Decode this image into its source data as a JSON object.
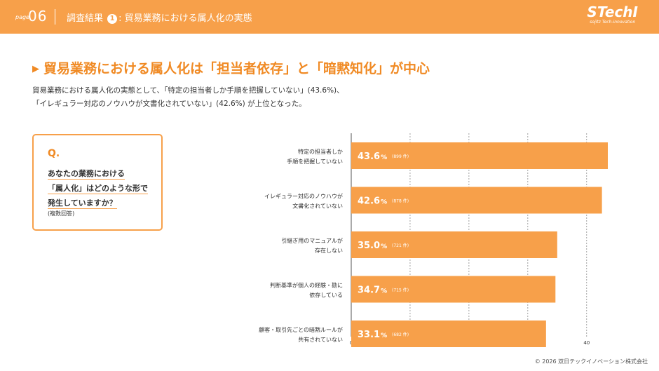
{
  "header": {
    "page_word": "page",
    "page_number": "06",
    "title_prefix": "調査結果",
    "title_number": "1",
    "title_suffix": ": 貿易業務における属人化の実態",
    "logo_main": "STechI",
    "logo_sub": "sojitz Tech-innovation"
  },
  "headline": "貿易業務における属人化は「担当者依存」と「暗黙知化」が中心",
  "summary_lines": [
    "貿易業務における属人化の実態として、「特定の担当者しか手順を把握していない」(43.6%)、",
    "「イレギュラー対応のノウハウが文書化されていない」(42.6%) が上位となった。"
  ],
  "question": {
    "mark": "Q.",
    "line1": "あなたの業務における",
    "line2": "「属人化」はどのような形で",
    "line3": "発生していますか？",
    "note": "(複数回答)"
  },
  "chart_data": {
    "type": "bar",
    "orientation": "horizontal",
    "categories": [
      [
        "特定の担当者しか",
        "手順を把握していない"
      ],
      [
        "イレギュラー対応のノウハウが",
        "文書化されていない"
      ],
      [
        "引継ぎ用のマニュアルが",
        "存在しない"
      ],
      [
        "判断基準が個人の経験・勘に",
        "依存している"
      ],
      [
        "顧客・取引先ごとの暗黙ルールが",
        "共有されていない"
      ]
    ],
    "values": [
      43.6,
      42.6,
      35.0,
      34.7,
      33.1
    ],
    "value_labels": [
      "43.6",
      "42.6",
      "35.0",
      "34.7",
      "33.1"
    ],
    "percent_sign": "%",
    "counts": [
      "(899 件)",
      "(878 件)",
      "(721 件)",
      "(715 件)",
      "(682 件)"
    ],
    "xticks": [
      0,
      10,
      20,
      30,
      40
    ],
    "xlim": [
      0,
      43.6
    ],
    "grid": true,
    "bar_color": "#f7a04a"
  },
  "copyright": "© 2026 双日テックイノベーション株式会社",
  "colors": {
    "accent": "#f7a04a",
    "headline": "#f08a24"
  }
}
